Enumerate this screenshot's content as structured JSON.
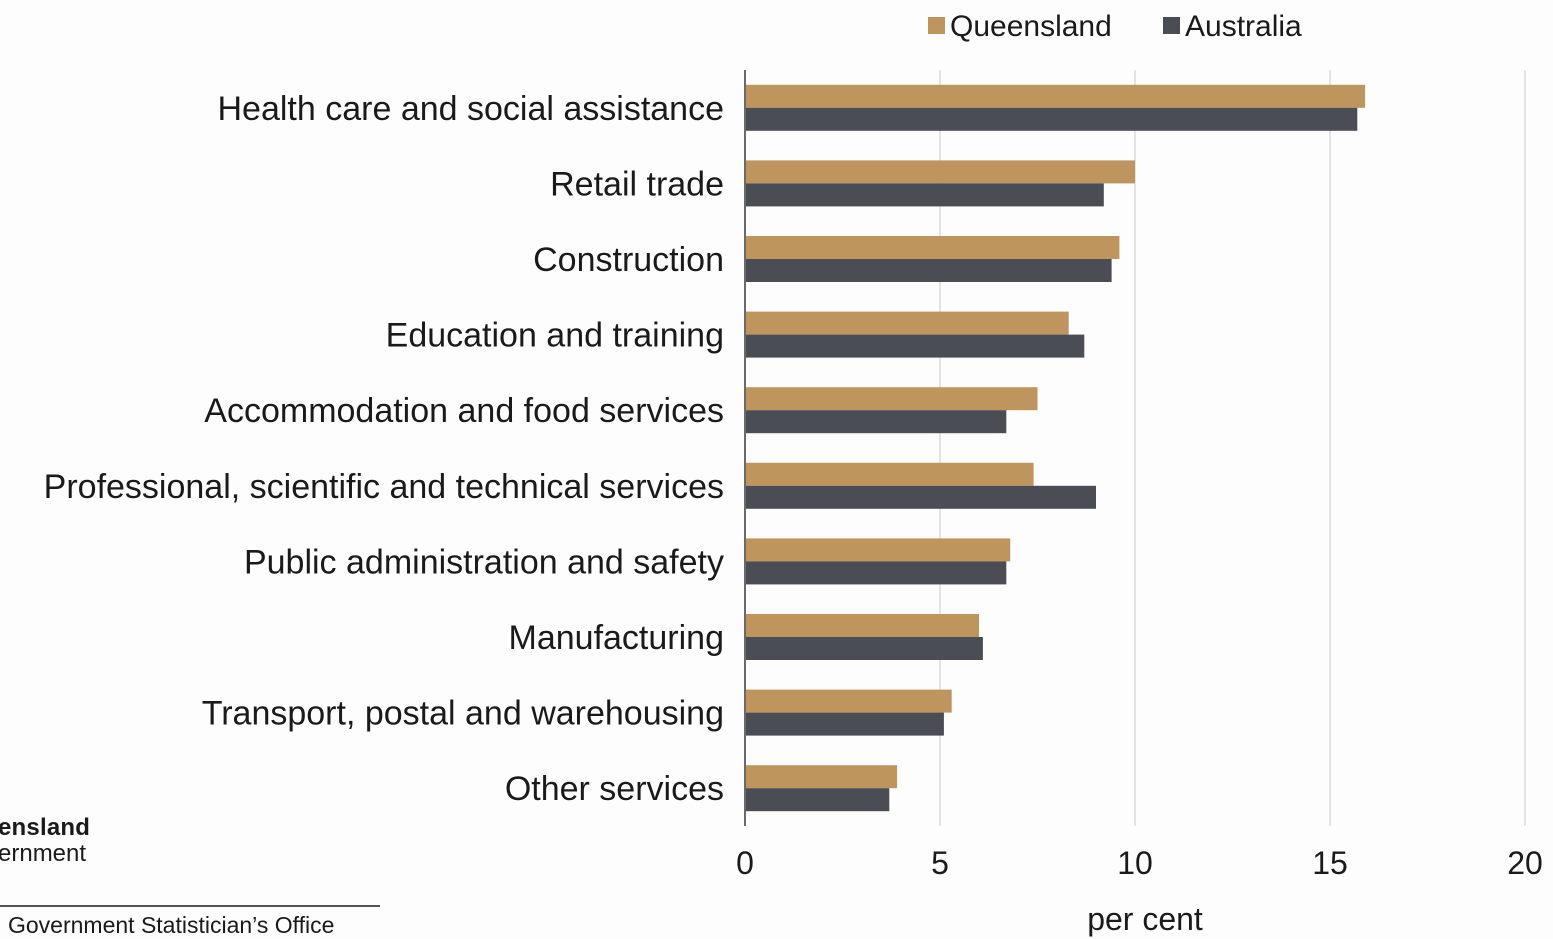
{
  "chart_data": {
    "type": "bar",
    "orientation": "horizontal",
    "categories": [
      "Health care and social assistance",
      "Retail trade",
      "Construction",
      "Education and training",
      "Accommodation and food services",
      "Professional, scientific and technical services",
      "Public administration and safety",
      "Manufacturing",
      "Transport, postal and warehousing",
      "Other services"
    ],
    "series": [
      {
        "name": "Queensland",
        "color": "#bf955e",
        "values": [
          15.9,
          10.0,
          9.6,
          8.3,
          7.5,
          7.4,
          6.8,
          6.0,
          5.3,
          3.9
        ]
      },
      {
        "name": "Australia",
        "color": "#4a4d54",
        "values": [
          15.7,
          9.2,
          9.4,
          8.7,
          6.7,
          9.0,
          6.7,
          6.1,
          5.1,
          3.7
        ]
      }
    ],
    "xlabel": "per cent",
    "xlim": [
      0,
      20
    ],
    "xticks": [
      0,
      5,
      10,
      15,
      20
    ],
    "grid": "vertical",
    "legend": "top-right"
  },
  "branding": {
    "logo_line1": "ensland",
    "logo_line2": "ernment",
    "footer": "Government Statistician’s Office"
  }
}
